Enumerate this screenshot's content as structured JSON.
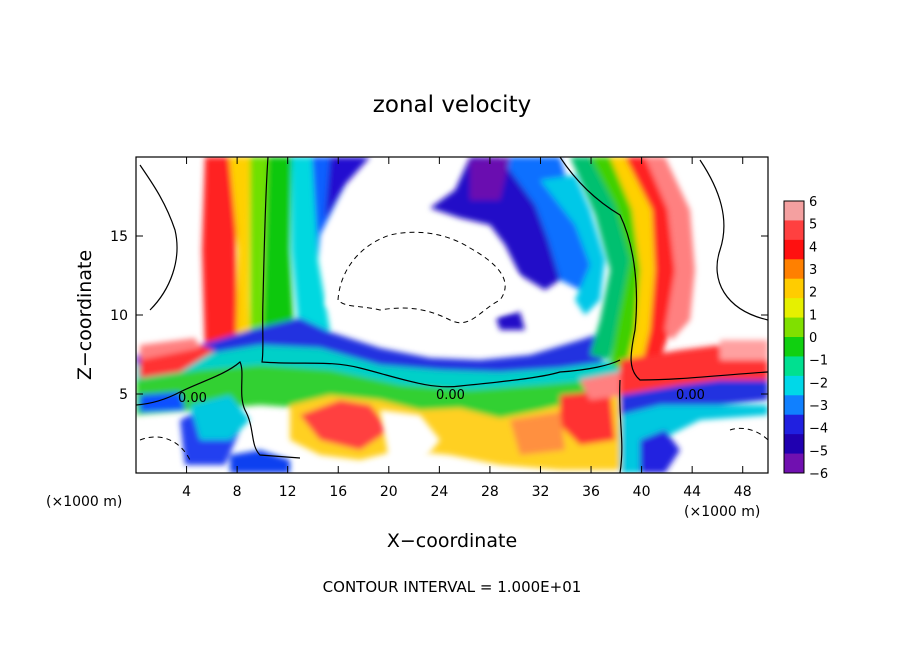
{
  "chart_data": {
    "type": "heatmap",
    "title": "zonal velocity",
    "xlabel": "X−coordinate",
    "ylabel": "Z−coordinate",
    "x_unit_left": "(×1000 m)",
    "x_unit_right": "(×1000 m)",
    "xlim": [
      0,
      50
    ],
    "ylim": [
      0,
      20
    ],
    "x_ticks": [
      4,
      8,
      12,
      16,
      20,
      24,
      28,
      32,
      36,
      40,
      44,
      48
    ],
    "x_tick_labels": [
      "4",
      "8",
      "12",
      "16",
      "20",
      "24",
      "28",
      "32",
      "36",
      "40",
      "44",
      "48"
    ],
    "y_ticks": [
      5,
      10,
      15
    ],
    "y_tick_labels": [
      "5",
      "10",
      "15"
    ],
    "colorbar": {
      "levels": [
        6,
        5,
        4,
        3,
        2,
        1,
        0,
        -1,
        -2,
        -3,
        -4,
        -5,
        -6
      ],
      "labels": [
        "6",
        "5",
        "4",
        "3",
        "2",
        "1",
        "0",
        "−1",
        "−2",
        "−3",
        "−4",
        "−5",
        "−6"
      ],
      "colors": [
        "#f4a0a0",
        "#ff4040",
        "#ff1010",
        "#ff8000",
        "#ffcc00",
        "#e6f000",
        "#80e000",
        "#10d010",
        "#00e090",
        "#00d8e8",
        "#1080ff",
        "#2020e0",
        "#2000b0",
        "#7010b0"
      ]
    },
    "contour_labels": [
      "0.00",
      "0.00",
      "0.00"
    ],
    "contour_interval_text": "CONTOUR INTERVAL =  1.000E+01"
  }
}
